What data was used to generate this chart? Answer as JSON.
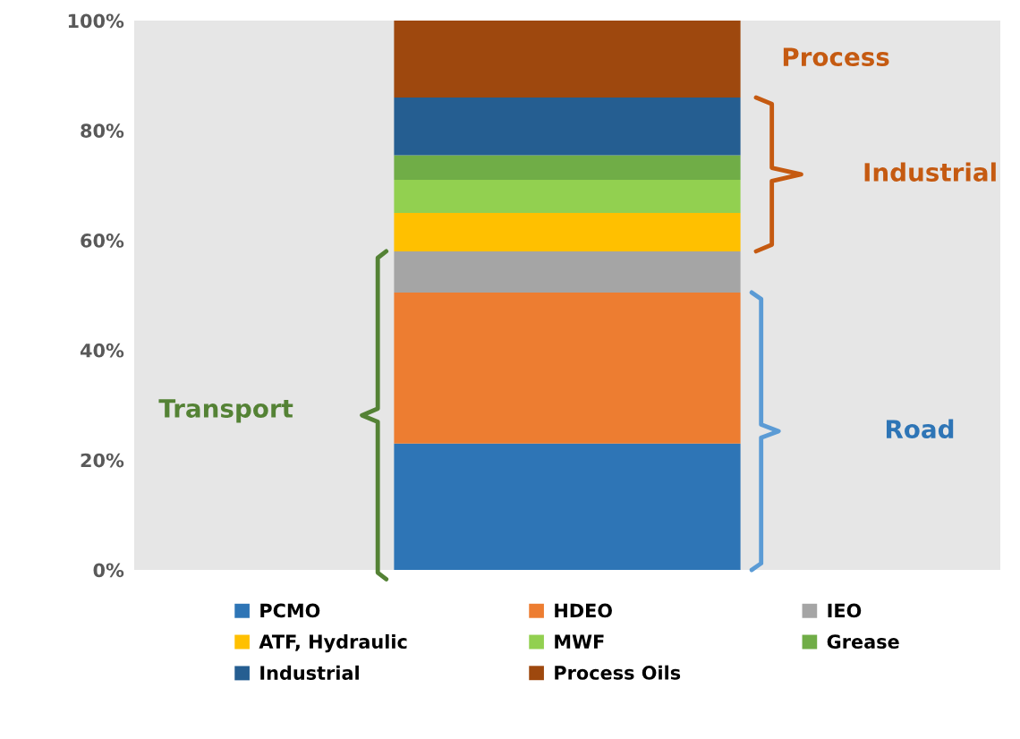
{
  "chart_data": {
    "type": "bar",
    "stacked": true,
    "categories": [
      null
    ],
    "series": [
      {
        "name": "PCMO",
        "color": "#2e75b6",
        "values": [
          23
        ]
      },
      {
        "name": "HDEO",
        "color": "#ed7d31",
        "values": [
          27.5
        ]
      },
      {
        "name": "IEO",
        "color": "#a5a5a5",
        "values": [
          7.5
        ]
      },
      {
        "name": "ATF, Hydraulic",
        "color": "#ffc000",
        "values": [
          7
        ]
      },
      {
        "name": "MWF",
        "color": "#92d050",
        "values": [
          6
        ]
      },
      {
        "name": "Grease",
        "color": "#70ad47",
        "values": [
          4.5
        ]
      },
      {
        "name": "Industrial",
        "color": "#255e91",
        "values": [
          10.5
        ]
      },
      {
        "name": "Process Oils",
        "color": "#9e480e",
        "values": [
          14
        ]
      }
    ],
    "ylim": [
      0,
      100
    ],
    "yticks": [
      {
        "value": 0,
        "label": "0%"
      },
      {
        "value": 20,
        "label": "20%"
      },
      {
        "value": 40,
        "label": "40%"
      },
      {
        "value": 60,
        "label": "60%"
      },
      {
        "value": 80,
        "label": "80%"
      },
      {
        "value": 100,
        "label": "100%"
      }
    ],
    "annotations": [
      "Process",
      "Industrial",
      "Road",
      "Transport"
    ],
    "grid": false,
    "legend": "bottom"
  }
}
